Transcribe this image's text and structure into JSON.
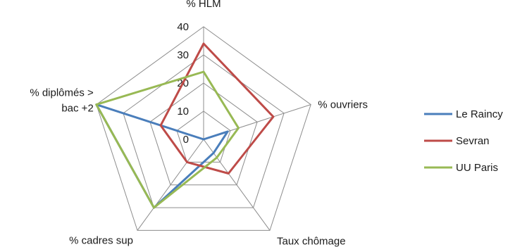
{
  "chart_data": {
    "type": "radar",
    "title": "",
    "axes": [
      "% HLM",
      "% ouvriers",
      "Taux chômage",
      "% cadres sup",
      "% diplômés > bac +2"
    ],
    "axis_label_lines": [
      [
        "% HLM"
      ],
      [
        "% ouvriers"
      ],
      [
        "Taux chômage"
      ],
      [
        "% cadres sup"
      ],
      [
        "% diplômés >",
        "bac +2"
      ]
    ],
    "rmin": 0,
    "rmax": 40,
    "ticks": [
      0,
      10,
      20,
      30,
      40
    ],
    "grid": true,
    "legend_position": "right",
    "series": [
      {
        "name": "Le Raincy",
        "color": "#4a7ebb",
        "values": [
          0,
          9,
          6,
          30,
          40
        ]
      },
      {
        "name": "Sevran",
        "color": "#be4b48",
        "values": [
          34,
          26,
          15,
          10,
          16
        ]
      },
      {
        "name": "UU Paris",
        "color": "#98b954",
        "values": [
          24,
          13,
          8,
          30,
          40
        ]
      }
    ]
  }
}
